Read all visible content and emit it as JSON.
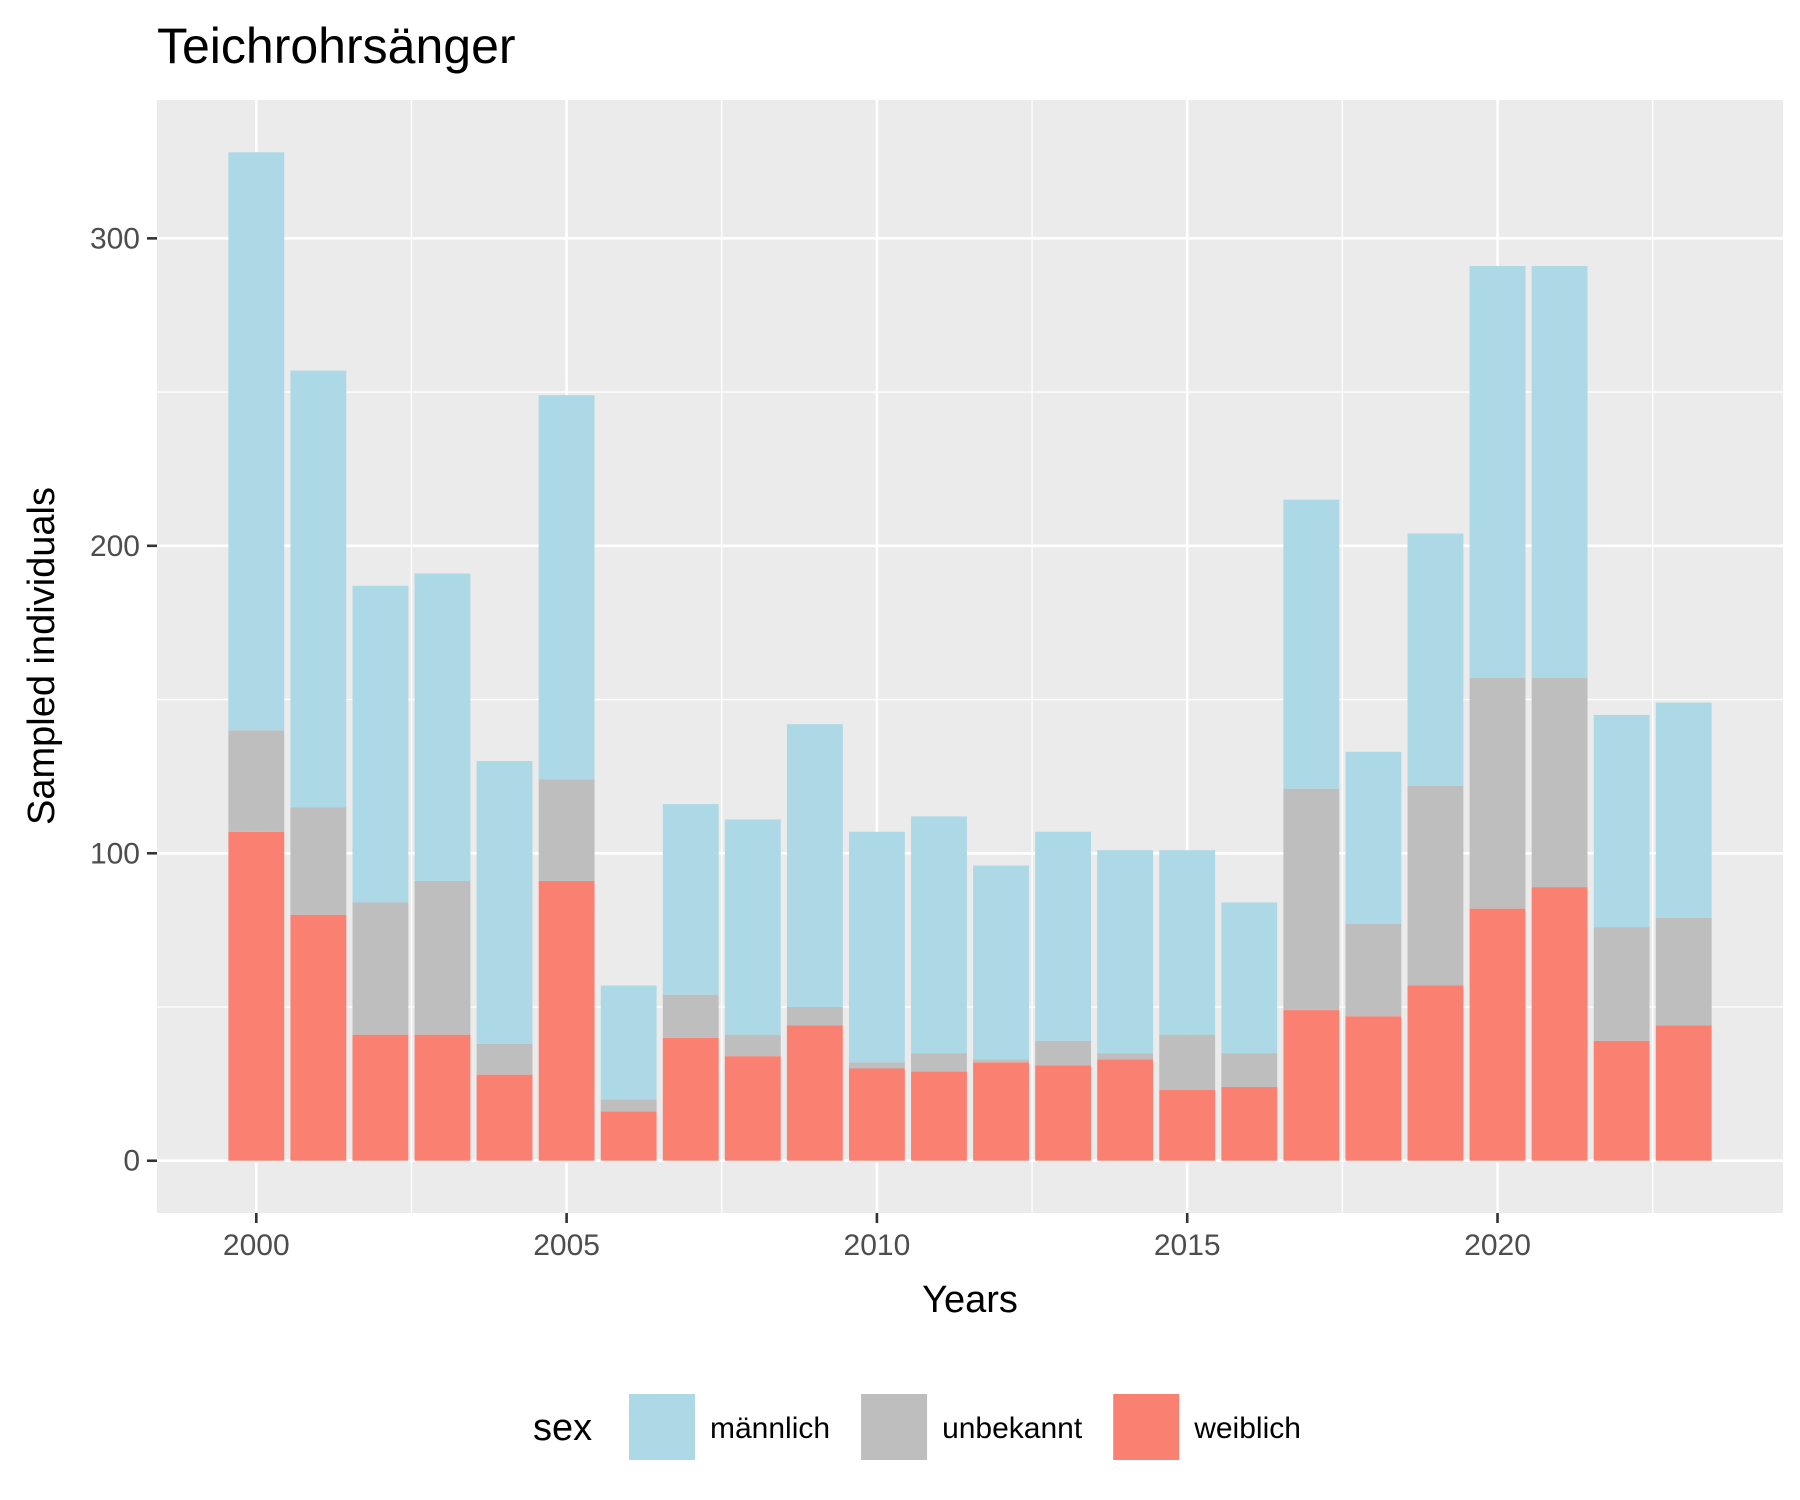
{
  "chart_data": {
    "type": "bar",
    "stacked": true,
    "title": "Teichrohrsänger",
    "xlabel": "Years",
    "ylabel": "Sampled individuals",
    "x": [
      2000,
      2001,
      2002,
      2003,
      2004,
      2005,
      2006,
      2007,
      2008,
      2009,
      2010,
      2011,
      2012,
      2013,
      2014,
      2015,
      2016,
      2017,
      2018,
      2019,
      2020,
      2021,
      2022,
      2023
    ],
    "x_ticks": [
      "2000",
      "2005",
      "2010",
      "2015",
      "2020"
    ],
    "y_ticks": [
      "0",
      "100",
      "200",
      "300"
    ],
    "xlim": [
      1998.4,
      2024.6
    ],
    "ylim": [
      -17,
      345
    ],
    "grid": true,
    "legend_position": "bottom",
    "legend_title": "sex",
    "stack_order_bottom_to_top": [
      "weiblich",
      "unbekannt",
      "männlich"
    ],
    "series": [
      {
        "name": "männlich",
        "color": "#ADD8E6",
        "values": [
          188,
          142,
          103,
          100,
          92,
          125,
          37,
          62,
          70,
          92,
          75,
          77,
          63,
          68,
          66,
          60,
          49,
          94,
          56,
          82,
          134,
          134,
          69,
          70
        ]
      },
      {
        "name": "unbekannt",
        "color": "#BEBEBE",
        "values": [
          33,
          35,
          43,
          50,
          10,
          33,
          4,
          14,
          7,
          6,
          2,
          6,
          1,
          8,
          2,
          18,
          11,
          72,
          30,
          65,
          75,
          68,
          37,
          35
        ]
      },
      {
        "name": "weiblich",
        "color": "#FA8072",
        "values": [
          107,
          80,
          41,
          41,
          28,
          91,
          16,
          40,
          34,
          44,
          30,
          29,
          32,
          31,
          33,
          23,
          24,
          49,
          47,
          57,
          82,
          89,
          39,
          44
        ]
      }
    ]
  }
}
